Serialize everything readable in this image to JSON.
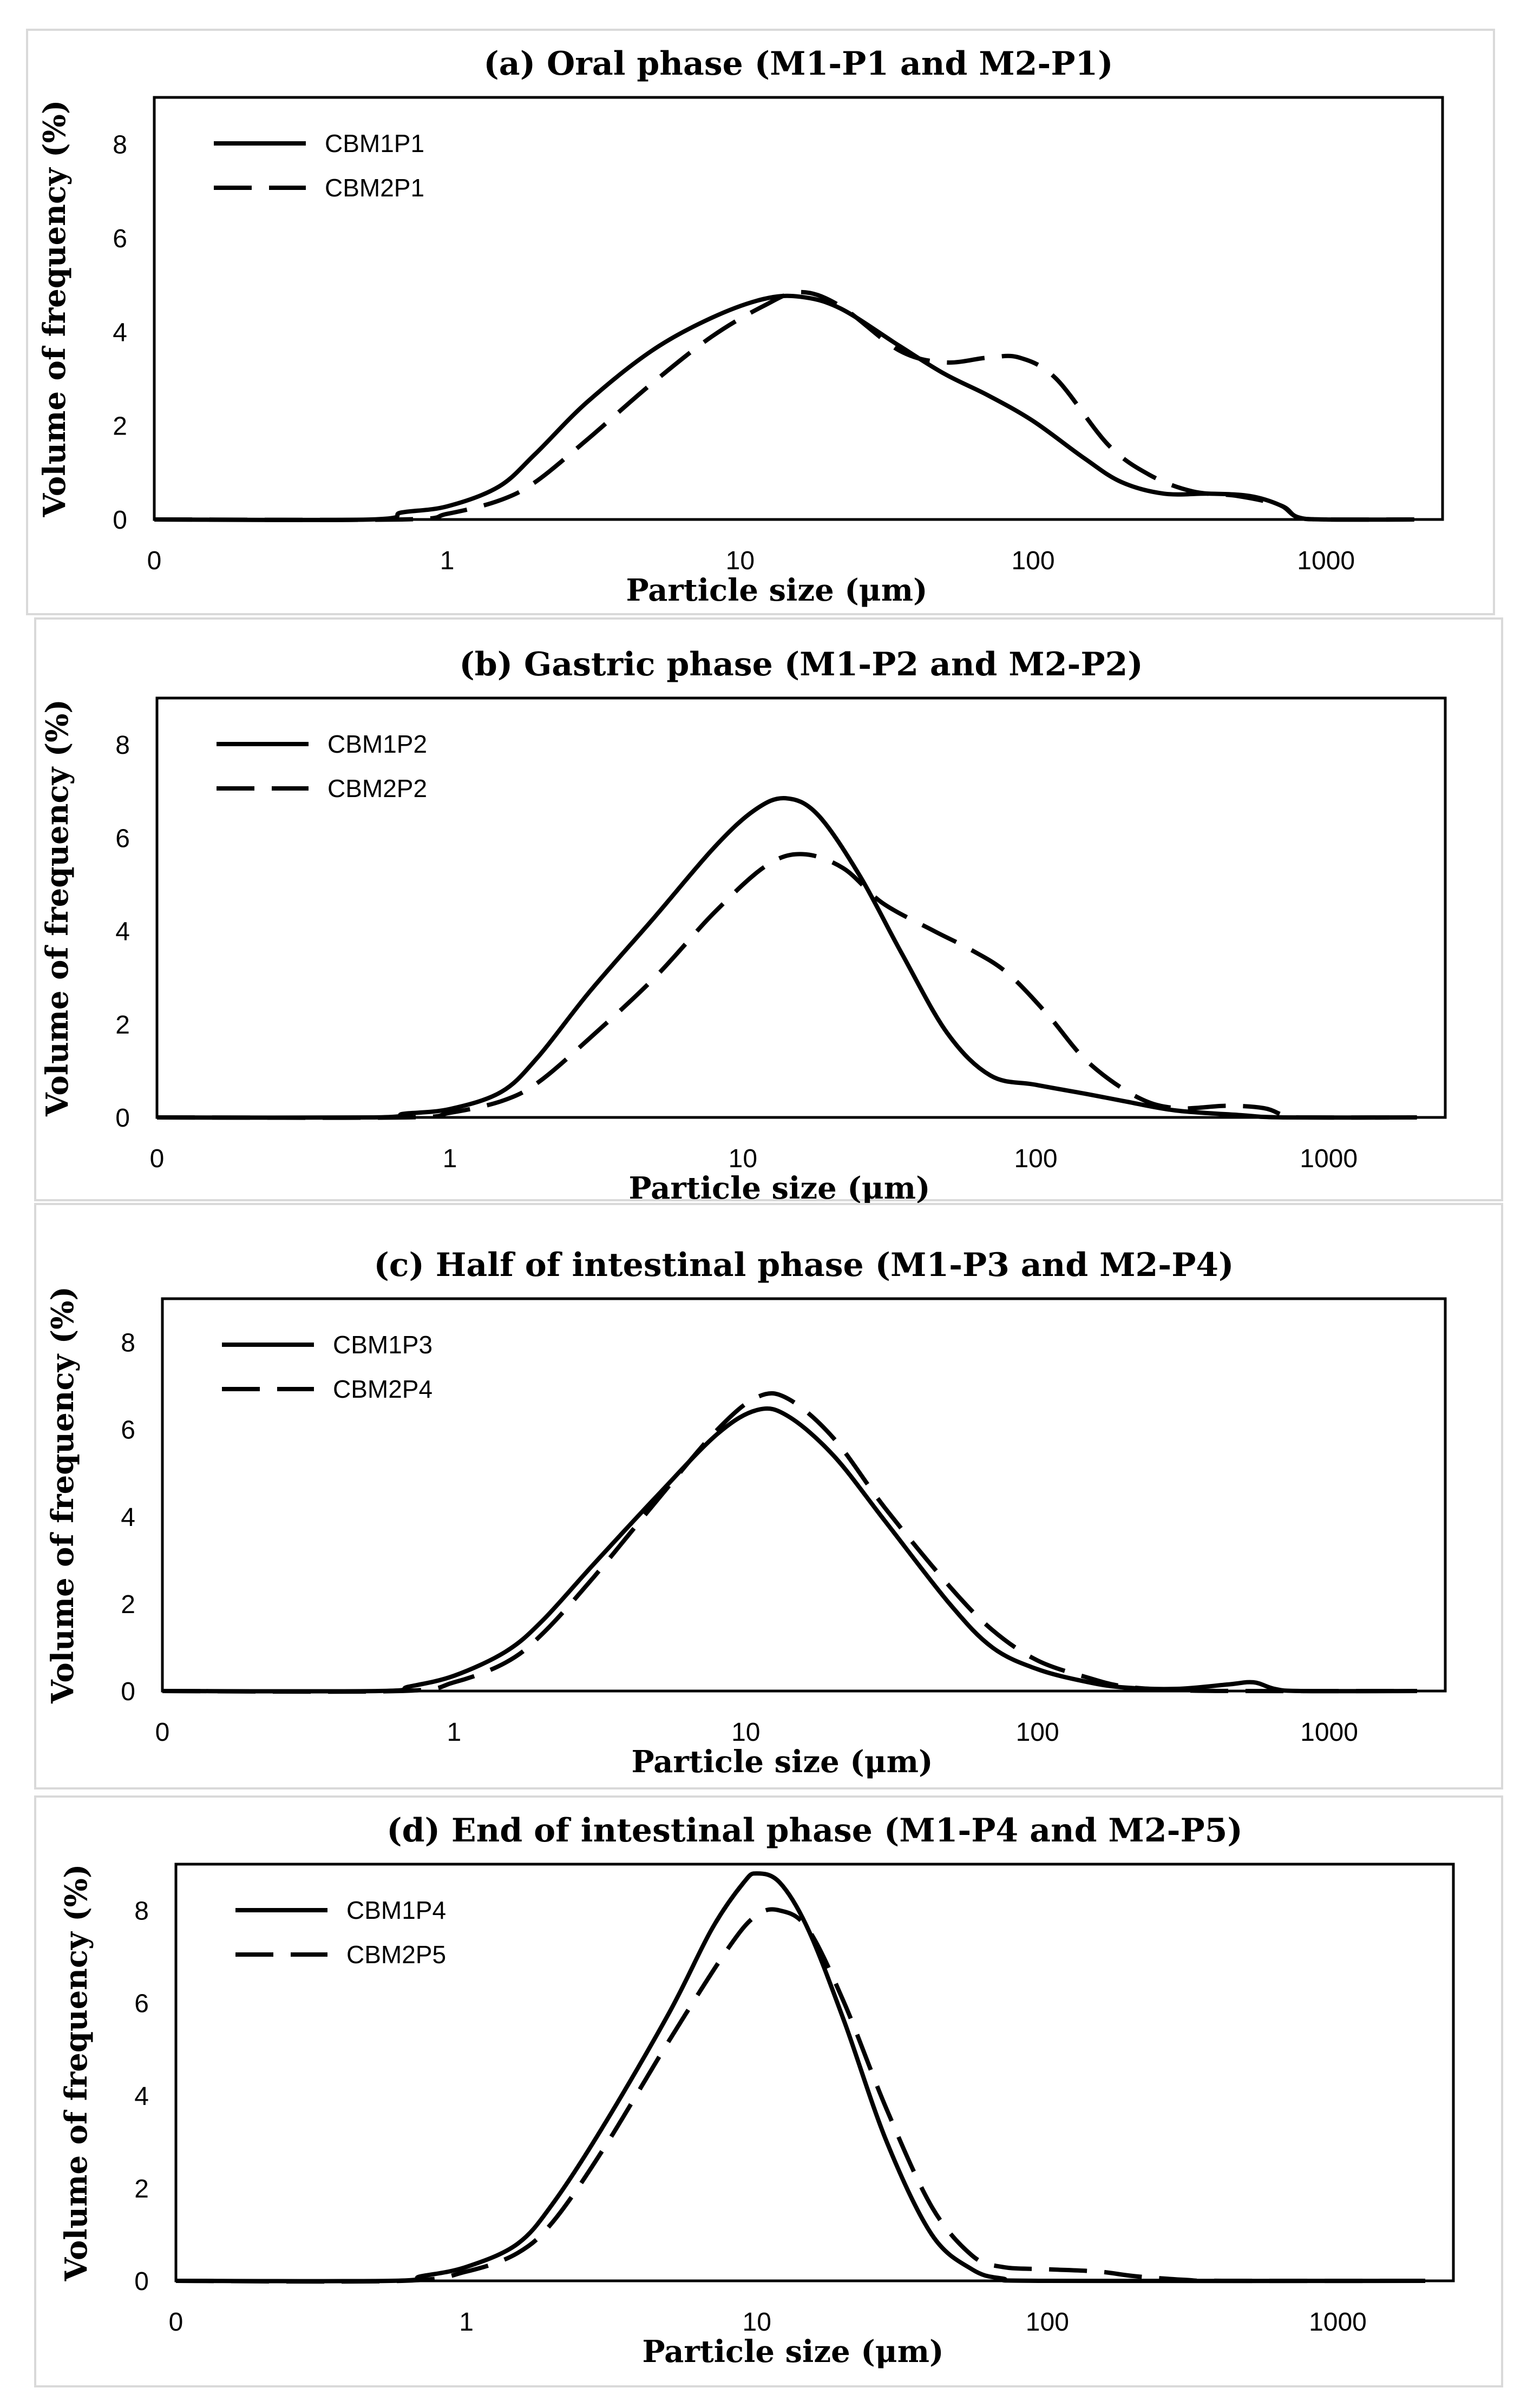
{
  "chart_data": [
    {
      "type": "line",
      "title": "(a) Oral phase (M1-P1 and M2-P1)",
      "xlabel": "Particle size (μm)",
      "ylabel": "Volume of frequency (%)",
      "xscale": "log",
      "xtick_labels": [
        "0",
        "1",
        "10",
        "100",
        "1000"
      ],
      "yticks": [
        0,
        2,
        4,
        6,
        8
      ],
      "ylim": [
        0,
        9
      ],
      "legend_position": "top-left",
      "series": [
        {
          "name": "CBM1P1",
          "style": "solid",
          "points": [
            [
              0.1,
              0
            ],
            [
              0.55,
              0
            ],
            [
              0.7,
              0.15
            ],
            [
              1,
              0.28
            ],
            [
              1.5,
              0.7
            ],
            [
              2,
              1.4
            ],
            [
              3,
              2.5
            ],
            [
              5,
              3.6
            ],
            [
              8,
              4.3
            ],
            [
              12,
              4.7
            ],
            [
              16,
              4.75
            ],
            [
              22,
              4.5
            ],
            [
              35,
              3.7
            ],
            [
              50,
              3.1
            ],
            [
              70,
              2.65
            ],
            [
              100,
              2.1
            ],
            [
              150,
              1.3
            ],
            [
              200,
              0.8
            ],
            [
              280,
              0.55
            ],
            [
              400,
              0.55
            ],
            [
              550,
              0.5
            ],
            [
              700,
              0.3
            ],
            [
              800,
              0.05
            ],
            [
              1000,
              0
            ],
            [
              2000,
              0
            ]
          ]
        },
        {
          "name": "CBM2P1",
          "style": "dashed",
          "points": [
            [
              0.1,
              0
            ],
            [
              0.7,
              0
            ],
            [
              1,
              0.12
            ],
            [
              1.5,
              0.4
            ],
            [
              2,
              0.8
            ],
            [
              3,
              1.7
            ],
            [
              5,
              2.9
            ],
            [
              8,
              3.9
            ],
            [
              12,
              4.55
            ],
            [
              16,
              4.85
            ],
            [
              22,
              4.55
            ],
            [
              35,
              3.6
            ],
            [
              50,
              3.35
            ],
            [
              70,
              3.45
            ],
            [
              90,
              3.45
            ],
            [
              120,
              3.0
            ],
            [
              180,
              1.6
            ],
            [
              250,
              0.95
            ],
            [
              350,
              0.6
            ],
            [
              500,
              0.5
            ],
            [
              700,
              0.3
            ],
            [
              800,
              0.05
            ],
            [
              1000,
              0
            ],
            [
              2000,
              0
            ]
          ]
        }
      ]
    },
    {
      "type": "line",
      "title": "(b) Gastric phase (M1-P2 and M2-P2)",
      "xlabel": "Particle size (μm)",
      "ylabel": "Volume of frequency (%)",
      "xscale": "log",
      "xtick_labels": [
        "0",
        "1",
        "10",
        "100",
        "1000"
      ],
      "yticks": [
        0,
        2,
        4,
        6,
        8
      ],
      "ylim": [
        0,
        9
      ],
      "legend_position": "top-left",
      "series": [
        {
          "name": "CBM1P2",
          "style": "solid",
          "points": [
            [
              0.1,
              0
            ],
            [
              0.55,
              0
            ],
            [
              0.7,
              0.08
            ],
            [
              1,
              0.18
            ],
            [
              1.5,
              0.55
            ],
            [
              2,
              1.3
            ],
            [
              3,
              2.7
            ],
            [
              5,
              4.3
            ],
            [
              8,
              5.8
            ],
            [
              11,
              6.6
            ],
            [
              14,
              6.85
            ],
            [
              18,
              6.5
            ],
            [
              25,
              5.2
            ],
            [
              35,
              3.5
            ],
            [
              50,
              1.8
            ],
            [
              70,
              0.9
            ],
            [
              100,
              0.7
            ],
            [
              150,
              0.5
            ],
            [
              200,
              0.35
            ],
            [
              300,
              0.15
            ],
            [
              500,
              0.05
            ],
            [
              700,
              0
            ],
            [
              2000,
              0
            ]
          ]
        },
        {
          "name": "CBM2P2",
          "style": "dashed",
          "points": [
            [
              0.1,
              0
            ],
            [
              0.7,
              0
            ],
            [
              1,
              0.1
            ],
            [
              1.5,
              0.35
            ],
            [
              2,
              0.75
            ],
            [
              3,
              1.7
            ],
            [
              5,
              3.0
            ],
            [
              8,
              4.4
            ],
            [
              12,
              5.4
            ],
            [
              16,
              5.65
            ],
            [
              22,
              5.35
            ],
            [
              30,
              4.6
            ],
            [
              45,
              4.0
            ],
            [
              60,
              3.6
            ],
            [
              80,
              3.1
            ],
            [
              110,
              2.2
            ],
            [
              150,
              1.2
            ],
            [
              220,
              0.45
            ],
            [
              300,
              0.2
            ],
            [
              450,
              0.25
            ],
            [
              600,
              0.2
            ],
            [
              700,
              0.05
            ],
            [
              800,
              0
            ],
            [
              2000,
              0
            ]
          ]
        }
      ]
    },
    {
      "type": "line",
      "title": "(c) Half of intestinal phase (M1-P3 and M2-P4)",
      "xlabel": "Particle size (μm)",
      "ylabel": "Volume of frequency (%)",
      "xscale": "log",
      "xtick_labels": [
        "0",
        "1",
        "10",
        "100",
        "1000"
      ],
      "yticks": [
        0,
        2,
        4,
        6,
        8
      ],
      "ylim": [
        0,
        9
      ],
      "legend_position": "top-left",
      "series": [
        {
          "name": "CBM1P3",
          "style": "solid",
          "points": [
            [
              0.1,
              0
            ],
            [
              0.55,
              0
            ],
            [
              0.7,
              0.1
            ],
            [
              1,
              0.35
            ],
            [
              1.5,
              0.9
            ],
            [
              2,
              1.6
            ],
            [
              3,
              2.9
            ],
            [
              5,
              4.5
            ],
            [
              8,
              5.9
            ],
            [
              11,
              6.45
            ],
            [
              14,
              6.3
            ],
            [
              20,
              5.4
            ],
            [
              30,
              3.9
            ],
            [
              50,
              2.0
            ],
            [
              70,
              1.0
            ],
            [
              100,
              0.5
            ],
            [
              150,
              0.2
            ],
            [
              200,
              0.08
            ],
            [
              300,
              0.05
            ],
            [
              450,
              0.15
            ],
            [
              550,
              0.2
            ],
            [
              650,
              0.05
            ],
            [
              800,
              0
            ],
            [
              2000,
              0
            ]
          ]
        },
        {
          "name": "CBM2P4",
          "style": "dashed",
          "points": [
            [
              0.1,
              0
            ],
            [
              0.65,
              0
            ],
            [
              1,
              0.2
            ],
            [
              1.5,
              0.65
            ],
            [
              2,
              1.3
            ],
            [
              3,
              2.6
            ],
            [
              5,
              4.4
            ],
            [
              8,
              6.0
            ],
            [
              11,
              6.75
            ],
            [
              14,
              6.7
            ],
            [
              20,
              5.8
            ],
            [
              30,
              4.2
            ],
            [
              50,
              2.4
            ],
            [
              70,
              1.4
            ],
            [
              100,
              0.7
            ],
            [
              150,
              0.3
            ],
            [
              200,
              0.1
            ],
            [
              300,
              0.02
            ],
            [
              500,
              0
            ],
            [
              2000,
              0
            ]
          ]
        }
      ]
    },
    {
      "type": "line",
      "title": "(d) End of intestinal phase (M1-P4 and M2-P5)",
      "xlabel": "Particle size (μm)",
      "ylabel": "Volume of frequency (%)",
      "xscale": "log",
      "xtick_labels": [
        "0",
        "1",
        "10",
        "100",
        "1000"
      ],
      "yticks": [
        0,
        2,
        4,
        6,
        8
      ],
      "ylim": [
        0,
        9
      ],
      "legend_position": "top-left",
      "series": [
        {
          "name": "CBM1P4",
          "style": "solid",
          "points": [
            [
              0.1,
              0
            ],
            [
              0.55,
              0
            ],
            [
              0.7,
              0.1
            ],
            [
              1,
              0.3
            ],
            [
              1.5,
              0.8
            ],
            [
              2,
              1.7
            ],
            [
              3,
              3.4
            ],
            [
              5,
              5.8
            ],
            [
              7,
              7.6
            ],
            [
              9,
              8.6
            ],
            [
              10,
              8.8
            ],
            [
              12,
              8.6
            ],
            [
              15,
              7.6
            ],
            [
              20,
              5.6
            ],
            [
              28,
              3.0
            ],
            [
              40,
              1.0
            ],
            [
              55,
              0.25
            ],
            [
              70,
              0.05
            ],
            [
              100,
              0
            ],
            [
              2000,
              0
            ]
          ]
        },
        {
          "name": "CBM2P5",
          "style": "dashed",
          "points": [
            [
              0.1,
              0
            ],
            [
              0.6,
              0
            ],
            [
              1,
              0.2
            ],
            [
              1.5,
              0.6
            ],
            [
              2,
              1.3
            ],
            [
              3,
              2.9
            ],
            [
              5,
              5.2
            ],
            [
              8,
              7.2
            ],
            [
              10,
              7.9
            ],
            [
              12,
              8.0
            ],
            [
              15,
              7.6
            ],
            [
              20,
              6.0
            ],
            [
              28,
              3.7
            ],
            [
              40,
              1.6
            ],
            [
              55,
              0.55
            ],
            [
              70,
              0.3
            ],
            [
              100,
              0.25
            ],
            [
              150,
              0.2
            ],
            [
              200,
              0.1
            ],
            [
              300,
              0.02
            ],
            [
              400,
              0
            ],
            [
              2000,
              0
            ]
          ]
        }
      ]
    }
  ]
}
